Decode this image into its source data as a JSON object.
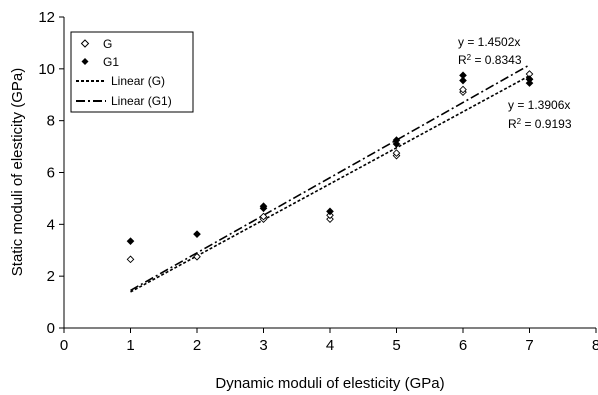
{
  "chart_data": {
    "type": "scatter",
    "xlabel": "Dynamic moduli of elesticity (GPa)",
    "ylabel": "Static moduli of elesticity (GPa)",
    "xlim": [
      0,
      8
    ],
    "ylim": [
      0,
      12
    ],
    "x_ticks": [
      0,
      1,
      2,
      3,
      4,
      5,
      6,
      7,
      8
    ],
    "y_ticks": [
      0,
      2,
      4,
      6,
      8,
      10,
      12
    ],
    "grid": false,
    "legend_position": "top-left",
    "series": [
      {
        "name": "G",
        "marker": "open-diamond",
        "points": [
          [
            1,
            2.65
          ],
          [
            2,
            2.75
          ],
          [
            3,
            4.2
          ],
          [
            3,
            4.3
          ],
          [
            4,
            4.2
          ],
          [
            4,
            4.35
          ],
          [
            5,
            6.65
          ],
          [
            5,
            6.75
          ],
          [
            6,
            9.1
          ],
          [
            6,
            9.2
          ],
          [
            7,
            9.6
          ],
          [
            7,
            9.8
          ]
        ]
      },
      {
        "name": "G1",
        "marker": "filled-diamond",
        "points": [
          [
            1,
            3.35
          ],
          [
            2,
            3.62
          ],
          [
            3,
            4.62
          ],
          [
            3,
            4.7
          ],
          [
            4,
            4.5
          ],
          [
            5,
            7.1
          ],
          [
            5,
            7.25
          ],
          [
            6,
            9.55
          ],
          [
            6,
            9.75
          ],
          [
            7,
            9.45
          ],
          [
            7,
            9.6
          ]
        ]
      }
    ],
    "trendlines": [
      {
        "name": "Linear (G)",
        "style": "dotted",
        "slope": 1.3906,
        "x_range": [
          1,
          7
        ],
        "equation": "y = 1.3906x",
        "r2_label": "R",
        "r2_sup": "2",
        "r2_value": " = 0.9193"
      },
      {
        "name": "Linear (G1)",
        "style": "dash-dot",
        "slope": 1.4502,
        "x_range": [
          1,
          7
        ],
        "equation": "y = 1.4502x",
        "r2_label": "R",
        "r2_sup": "2",
        "r2_value": " = 0.8343"
      }
    ],
    "legend": [
      "G",
      "G1",
      "Linear (G)",
      "Linear (G1)"
    ]
  }
}
